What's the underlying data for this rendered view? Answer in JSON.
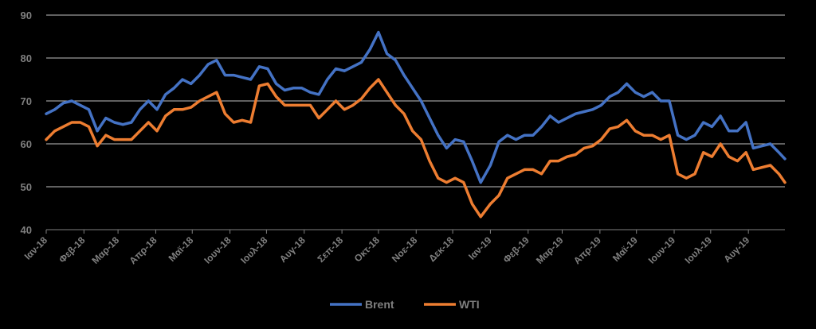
{
  "chart_data": {
    "type": "line",
    "title": "",
    "xlabel": "",
    "ylabel": "",
    "ylim": [
      40,
      90
    ],
    "yticks": [
      40,
      50,
      60,
      70,
      80,
      90
    ],
    "xlim": [
      "2018-01-01",
      "2019-08-31"
    ],
    "xtick_dates": [
      "2018-01-01",
      "2018-02-01",
      "2018-03-01",
      "2018-04-01",
      "2018-05-01",
      "2018-06-01",
      "2018-07-01",
      "2018-08-01",
      "2018-09-01",
      "2018-10-01",
      "2018-11-01",
      "2018-12-01",
      "2019-01-01",
      "2019-02-01",
      "2019-03-01",
      "2019-04-01",
      "2019-05-01",
      "2019-06-01",
      "2019-07-01",
      "2019-08-01"
    ],
    "xtick_labels": [
      "Ιαν-18",
      "Φεβ-18",
      "Μαρ-18",
      "Απρ-18",
      "Μαϊ-18",
      "Ιουν-18",
      "Ιουλ-18",
      "Αυγ-18",
      "Σεπ-18",
      "Οκτ-18",
      "Νοε-18",
      "Δεκ-18",
      "Ιαν-19",
      "Φεβ-19",
      "Μαρ-19",
      "Απρ-19",
      "Μαϊ-19",
      "Ιουν-19",
      "Ιουλ-19",
      "Αυγ-19"
    ],
    "grid": true,
    "legend_position": "bottom",
    "series": [
      {
        "name": "Brent",
        "color": "#4472c4",
        "points": [
          [
            "2018-01-01",
            67
          ],
          [
            "2018-01-08",
            68
          ],
          [
            "2018-01-15",
            69.5
          ],
          [
            "2018-01-22",
            70
          ],
          [
            "2018-01-29",
            69
          ],
          [
            "2018-02-05",
            68
          ],
          [
            "2018-02-12",
            63
          ],
          [
            "2018-02-19",
            66
          ],
          [
            "2018-02-26",
            65
          ],
          [
            "2018-03-05",
            64.5
          ],
          [
            "2018-03-12",
            65
          ],
          [
            "2018-03-19",
            68
          ],
          [
            "2018-03-26",
            70
          ],
          [
            "2018-04-02",
            68
          ],
          [
            "2018-04-09",
            71.5
          ],
          [
            "2018-04-16",
            73
          ],
          [
            "2018-04-23",
            75
          ],
          [
            "2018-04-30",
            74
          ],
          [
            "2018-05-07",
            76
          ],
          [
            "2018-05-14",
            78.5
          ],
          [
            "2018-05-21",
            79.5
          ],
          [
            "2018-05-28",
            76
          ],
          [
            "2018-06-04",
            76
          ],
          [
            "2018-06-11",
            75.5
          ],
          [
            "2018-06-18",
            75
          ],
          [
            "2018-06-25",
            78
          ],
          [
            "2018-07-02",
            77.5
          ],
          [
            "2018-07-09",
            74
          ],
          [
            "2018-07-16",
            72.5
          ],
          [
            "2018-07-23",
            73
          ],
          [
            "2018-07-30",
            73
          ],
          [
            "2018-08-06",
            72
          ],
          [
            "2018-08-13",
            71.5
          ],
          [
            "2018-08-20",
            75
          ],
          [
            "2018-08-27",
            77.5
          ],
          [
            "2018-09-03",
            77
          ],
          [
            "2018-09-10",
            78
          ],
          [
            "2018-09-17",
            79
          ],
          [
            "2018-09-24",
            82
          ],
          [
            "2018-10-01",
            86
          ],
          [
            "2018-10-08",
            81
          ],
          [
            "2018-10-15",
            79.5
          ],
          [
            "2018-10-22",
            76
          ],
          [
            "2018-10-29",
            73
          ],
          [
            "2018-11-05",
            70
          ],
          [
            "2018-11-12",
            66
          ],
          [
            "2018-11-19",
            62
          ],
          [
            "2018-11-26",
            59
          ],
          [
            "2018-12-03",
            61
          ],
          [
            "2018-12-10",
            60.5
          ],
          [
            "2018-12-17",
            56
          ],
          [
            "2018-12-24",
            51
          ],
          [
            "2019-01-01",
            55
          ],
          [
            "2019-01-08",
            60.5
          ],
          [
            "2019-01-15",
            62
          ],
          [
            "2019-01-22",
            61
          ],
          [
            "2019-01-29",
            62
          ],
          [
            "2019-02-05",
            62
          ],
          [
            "2019-02-12",
            64
          ],
          [
            "2019-02-19",
            66.5
          ],
          [
            "2019-02-26",
            65
          ],
          [
            "2019-03-05",
            66
          ],
          [
            "2019-03-12",
            67
          ],
          [
            "2019-03-19",
            67.5
          ],
          [
            "2019-03-26",
            68
          ],
          [
            "2019-04-02",
            69
          ],
          [
            "2019-04-09",
            71
          ],
          [
            "2019-04-16",
            72
          ],
          [
            "2019-04-23",
            74
          ],
          [
            "2019-04-30",
            72
          ],
          [
            "2019-05-07",
            71
          ],
          [
            "2019-05-14",
            72
          ],
          [
            "2019-05-21",
            70
          ],
          [
            "2019-05-28",
            70
          ],
          [
            "2019-06-04",
            62
          ],
          [
            "2019-06-11",
            61
          ],
          [
            "2019-06-18",
            62
          ],
          [
            "2019-06-25",
            65
          ],
          [
            "2019-07-02",
            64
          ],
          [
            "2019-07-09",
            66.5
          ],
          [
            "2019-07-16",
            63
          ],
          [
            "2019-07-23",
            63
          ],
          [
            "2019-07-30",
            65
          ],
          [
            "2019-08-05",
            59
          ],
          [
            "2019-08-12",
            59.5
          ],
          [
            "2019-08-19",
            60
          ],
          [
            "2019-08-26",
            58
          ],
          [
            "2019-08-31",
            56.5
          ]
        ]
      },
      {
        "name": "WTI",
        "color": "#ed7d31",
        "points": [
          [
            "2018-01-01",
            61
          ],
          [
            "2018-01-08",
            63
          ],
          [
            "2018-01-15",
            64
          ],
          [
            "2018-01-22",
            65
          ],
          [
            "2018-01-29",
            65
          ],
          [
            "2018-02-05",
            64
          ],
          [
            "2018-02-12",
            59.5
          ],
          [
            "2018-02-19",
            62
          ],
          [
            "2018-02-26",
            61
          ],
          [
            "2018-03-05",
            61
          ],
          [
            "2018-03-12",
            61
          ],
          [
            "2018-03-19",
            63
          ],
          [
            "2018-03-26",
            65
          ],
          [
            "2018-04-02",
            63
          ],
          [
            "2018-04-09",
            66.5
          ],
          [
            "2018-04-16",
            68
          ],
          [
            "2018-04-23",
            68
          ],
          [
            "2018-04-30",
            68.5
          ],
          [
            "2018-05-07",
            70
          ],
          [
            "2018-05-14",
            71
          ],
          [
            "2018-05-21",
            72
          ],
          [
            "2018-05-28",
            67
          ],
          [
            "2018-06-04",
            65
          ],
          [
            "2018-06-11",
            65.5
          ],
          [
            "2018-06-18",
            65
          ],
          [
            "2018-06-25",
            73.5
          ],
          [
            "2018-07-02",
            74
          ],
          [
            "2018-07-09",
            71
          ],
          [
            "2018-07-16",
            69
          ],
          [
            "2018-07-23",
            69
          ],
          [
            "2018-07-30",
            69
          ],
          [
            "2018-08-06",
            69
          ],
          [
            "2018-08-13",
            66
          ],
          [
            "2018-08-20",
            68
          ],
          [
            "2018-08-27",
            70
          ],
          [
            "2018-09-03",
            68
          ],
          [
            "2018-09-10",
            69
          ],
          [
            "2018-09-17",
            70.5
          ],
          [
            "2018-09-24",
            73
          ],
          [
            "2018-10-01",
            75
          ],
          [
            "2018-10-08",
            72
          ],
          [
            "2018-10-15",
            69
          ],
          [
            "2018-10-22",
            67
          ],
          [
            "2018-10-29",
            63
          ],
          [
            "2018-11-05",
            61
          ],
          [
            "2018-11-12",
            56
          ],
          [
            "2018-11-19",
            52
          ],
          [
            "2018-11-26",
            51
          ],
          [
            "2018-12-03",
            52
          ],
          [
            "2018-12-10",
            51
          ],
          [
            "2018-12-17",
            46
          ],
          [
            "2018-12-24",
            43
          ],
          [
            "2019-01-01",
            46
          ],
          [
            "2019-01-08",
            48
          ],
          [
            "2019-01-15",
            52
          ],
          [
            "2019-01-22",
            53
          ],
          [
            "2019-01-29",
            54
          ],
          [
            "2019-02-05",
            54
          ],
          [
            "2019-02-12",
            53
          ],
          [
            "2019-02-19",
            56
          ],
          [
            "2019-02-26",
            56
          ],
          [
            "2019-03-05",
            57
          ],
          [
            "2019-03-12",
            57.5
          ],
          [
            "2019-03-19",
            59
          ],
          [
            "2019-03-26",
            59.5
          ],
          [
            "2019-04-02",
            61
          ],
          [
            "2019-04-09",
            63.5
          ],
          [
            "2019-04-16",
            64
          ],
          [
            "2019-04-23",
            65.5
          ],
          [
            "2019-04-30",
            63
          ],
          [
            "2019-05-07",
            62
          ],
          [
            "2019-05-14",
            62
          ],
          [
            "2019-05-21",
            61
          ],
          [
            "2019-05-28",
            62
          ],
          [
            "2019-06-04",
            53
          ],
          [
            "2019-06-11",
            52
          ],
          [
            "2019-06-18",
            53
          ],
          [
            "2019-06-25",
            58
          ],
          [
            "2019-07-02",
            57
          ],
          [
            "2019-07-09",
            60
          ],
          [
            "2019-07-16",
            57
          ],
          [
            "2019-07-23",
            56
          ],
          [
            "2019-07-30",
            58
          ],
          [
            "2019-08-05",
            54
          ],
          [
            "2019-08-12",
            54.5
          ],
          [
            "2019-08-19",
            55
          ],
          [
            "2019-08-26",
            53
          ],
          [
            "2019-08-31",
            51
          ]
        ]
      }
    ]
  }
}
